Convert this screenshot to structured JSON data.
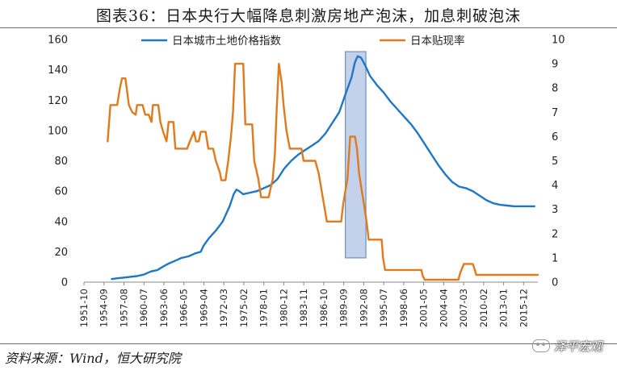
{
  "title": "图表36：日本央行大幅降息刺激房地产泡沫，加息刺破泡沫",
  "source": "资料来源：Wind，恒大研究院",
  "watermark": "泽平宏观",
  "chart_data": {
    "type": "line",
    "x_range": [
      1951.75,
      2018.0
    ],
    "x_tick_labels": [
      "1951-10",
      "1954-09",
      "1957-08",
      "1960-07",
      "1963-06",
      "1966-05",
      "1969-04",
      "1972-03",
      "1975-02",
      "1978-01",
      "1980-12",
      "1983-11",
      "1986-10",
      "1989-09",
      "1992-08",
      "1995-07",
      "1998-06",
      "2001-05",
      "2004-04",
      "2007-03",
      "2010-02",
      "2013-01",
      "2015-12"
    ],
    "y_left": {
      "min": 0,
      "max": 160,
      "ticks": [
        0,
        20,
        40,
        60,
        80,
        100,
        120,
        140,
        160
      ]
    },
    "y_right": {
      "min": 0,
      "max": 10,
      "ticks": [
        0,
        1,
        2,
        3,
        4,
        5,
        6,
        7,
        8,
        9,
        10
      ]
    },
    "legend_position": "top",
    "highlight_region": {
      "x_start": 1989.9,
      "x_end": 1992.9,
      "y_right_start": 1.0,
      "y_right_end": 9.5,
      "color": "#b8c9e6"
    },
    "series": [
      {
        "name": "日本城市土地价格指数",
        "axis": "left",
        "color": "#1f77c4",
        "points": [
          [
            1955.8,
            2
          ],
          [
            1956.5,
            2.5
          ],
          [
            1957.5,
            3
          ],
          [
            1958.5,
            3.5
          ],
          [
            1959.5,
            4
          ],
          [
            1960.5,
            5
          ],
          [
            1961.5,
            7
          ],
          [
            1962.5,
            8
          ],
          [
            1963.2,
            10
          ],
          [
            1964,
            12
          ],
          [
            1965,
            14
          ],
          [
            1966,
            16
          ],
          [
            1967,
            17
          ],
          [
            1968,
            19
          ],
          [
            1968.8,
            20
          ],
          [
            1969.2,
            24
          ],
          [
            1970,
            29
          ],
          [
            1971,
            34
          ],
          [
            1972,
            40
          ],
          [
            1973,
            50
          ],
          [
            1973.6,
            58
          ],
          [
            1974,
            61
          ],
          [
            1974.4,
            60
          ],
          [
            1975,
            58
          ],
          [
            1976,
            59
          ],
          [
            1977,
            60
          ],
          [
            1978,
            62
          ],
          [
            1979,
            64
          ],
          [
            1980,
            68
          ],
          [
            1981,
            75
          ],
          [
            1982,
            80
          ],
          [
            1983,
            84
          ],
          [
            1984,
            87
          ],
          [
            1985,
            90
          ],
          [
            1986,
            93
          ],
          [
            1987,
            98
          ],
          [
            1988,
            105
          ],
          [
            1989,
            112
          ],
          [
            1990,
            125
          ],
          [
            1990.8,
            135
          ],
          [
            1991.3,
            145
          ],
          [
            1991.7,
            149
          ],
          [
            1992.2,
            148
          ],
          [
            1992.8,
            143
          ],
          [
            1993.5,
            136
          ],
          [
            1994.5,
            130
          ],
          [
            1995.5,
            125
          ],
          [
            1996.5,
            119
          ],
          [
            1997.5,
            114
          ],
          [
            1998.5,
            109
          ],
          [
            1999.5,
            104
          ],
          [
            2000.5,
            98
          ],
          [
            2001.5,
            91
          ],
          [
            2002.5,
            84
          ],
          [
            2003.5,
            77
          ],
          [
            2004.5,
            71
          ],
          [
            2005.5,
            66
          ],
          [
            2006.5,
            63
          ],
          [
            2007.5,
            62
          ],
          [
            2008.5,
            60
          ],
          [
            2009.5,
            57
          ],
          [
            2010.5,
            54
          ],
          [
            2011.5,
            52
          ],
          [
            2012.5,
            51
          ],
          [
            2013.5,
            50.5
          ],
          [
            2014.5,
            50
          ],
          [
            2015.5,
            50
          ],
          [
            2016.5,
            50
          ],
          [
            2017.5,
            50
          ]
        ]
      },
      {
        "name": "日本贴现率",
        "axis": "right",
        "color": "#e07a1f",
        "points": [
          [
            1955.2,
            5.8
          ],
          [
            1955.6,
            7.3
          ],
          [
            1956.6,
            7.3
          ],
          [
            1957,
            8
          ],
          [
            1957.3,
            8.4
          ],
          [
            1957.8,
            8.4
          ],
          [
            1958.3,
            7.3
          ],
          [
            1958.8,
            7.0
          ],
          [
            1959.3,
            6.9
          ],
          [
            1959.5,
            7.3
          ],
          [
            1960.3,
            7.3
          ],
          [
            1960.7,
            6.9
          ],
          [
            1961.2,
            6.9
          ],
          [
            1961.6,
            6.6
          ],
          [
            1961.8,
            7.3
          ],
          [
            1962.6,
            7.3
          ],
          [
            1962.9,
            6.6
          ],
          [
            1963.3,
            6.2
          ],
          [
            1963.8,
            5.8
          ],
          [
            1964.1,
            6.6
          ],
          [
            1964.8,
            6.6
          ],
          [
            1965.1,
            5.5
          ],
          [
            1966.8,
            5.5
          ],
          [
            1967.2,
            5.8
          ],
          [
            1967.8,
            6.2
          ],
          [
            1968.1,
            5.8
          ],
          [
            1968.5,
            5.8
          ],
          [
            1968.8,
            6.2
          ],
          [
            1969.5,
            6.2
          ],
          [
            1969.9,
            5.5
          ],
          [
            1970.6,
            5.5
          ],
          [
            1971.0,
            5.0
          ],
          [
            1971.6,
            4.5
          ],
          [
            1971.8,
            4.2
          ],
          [
            1972.4,
            4.2
          ],
          [
            1972.8,
            5.0
          ],
          [
            1973.2,
            6.0
          ],
          [
            1973.5,
            7.0
          ],
          [
            1973.8,
            9.0
          ],
          [
            1975.0,
            9.0
          ],
          [
            1975.3,
            6.5
          ],
          [
            1976.3,
            6.5
          ],
          [
            1976.6,
            5.0
          ],
          [
            1977.2,
            4.25
          ],
          [
            1977.6,
            3.5
          ],
          [
            1978.7,
            3.5
          ],
          [
            1979.3,
            4.25
          ],
          [
            1979.6,
            5.25
          ],
          [
            1979.9,
            7.25
          ],
          [
            1980.2,
            9.0
          ],
          [
            1980.6,
            8.25
          ],
          [
            1980.9,
            7.25
          ],
          [
            1981.3,
            6.25
          ],
          [
            1981.8,
            5.5
          ],
          [
            1983.5,
            5.5
          ],
          [
            1983.8,
            5.0
          ],
          [
            1985.5,
            5.0
          ],
          [
            1986.0,
            4.5
          ],
          [
            1986.3,
            4.0
          ],
          [
            1986.6,
            3.5
          ],
          [
            1986.9,
            3.0
          ],
          [
            1987.2,
            2.5
          ],
          [
            1989.3,
            2.5
          ],
          [
            1989.6,
            3.25
          ],
          [
            1989.9,
            3.75
          ],
          [
            1990.2,
            4.25
          ],
          [
            1990.6,
            6.0
          ],
          [
            1991.3,
            6.0
          ],
          [
            1991.6,
            5.5
          ],
          [
            1991.9,
            4.5
          ],
          [
            1992.3,
            3.75
          ],
          [
            1992.6,
            3.25
          ],
          [
            1993.0,
            2.5
          ],
          [
            1993.3,
            1.75
          ],
          [
            1995.2,
            1.75
          ],
          [
            1995.4,
            1.0
          ],
          [
            1995.7,
            0.5
          ],
          [
            2001.0,
            0.5
          ],
          [
            2001.2,
            0.25
          ],
          [
            2001.5,
            0.1
          ],
          [
            2006.4,
            0.1
          ],
          [
            2006.7,
            0.4
          ],
          [
            2007.2,
            0.75
          ],
          [
            2008.5,
            0.75
          ],
          [
            2008.8,
            0.5
          ],
          [
            2009.0,
            0.3
          ],
          [
            2018.0,
            0.3
          ]
        ]
      }
    ]
  }
}
